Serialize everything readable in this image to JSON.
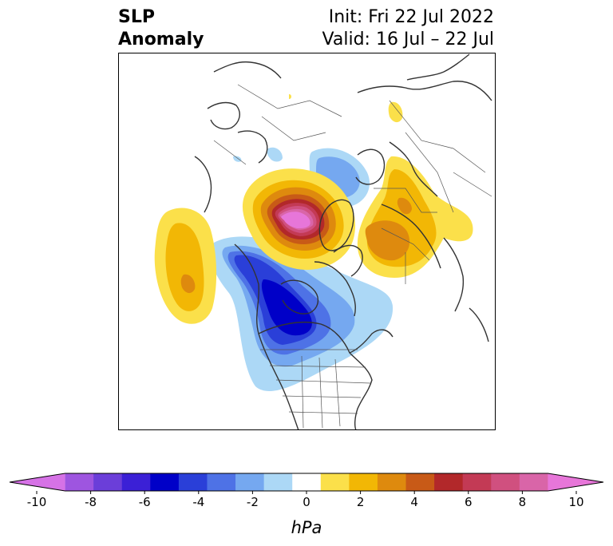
{
  "title": {
    "left_line1": "SLP",
    "left_line2": "Anomaly",
    "right_line1": "Init: Fri 22 Jul 2022",
    "right_line2": "Valid: 16 Jul – 22 Jul"
  },
  "colorbar": {
    "unit": "hPa",
    "ticks": [
      "-10",
      "-8",
      "-6",
      "-4",
      "-2",
      "0",
      "2",
      "4",
      "6",
      "8",
      "10"
    ],
    "colors": [
      "#d672e6",
      "#9e55e0",
      "#6b3ed9",
      "#3b20d6",
      "#0000c8",
      "#2a3fd8",
      "#4e72e6",
      "#75a8f0",
      "#acd8f6",
      "#ffffff",
      "#fbe04a",
      "#f2b705",
      "#de8a0e",
      "#c85a17",
      "#b2282a",
      "#c33a55",
      "#d0507f",
      "#d965a8",
      "#e776d9"
    ],
    "extend": "both"
  },
  "map": {
    "projection": "polar-stereographic",
    "field": "sea-level-pressure-anomaly"
  }
}
